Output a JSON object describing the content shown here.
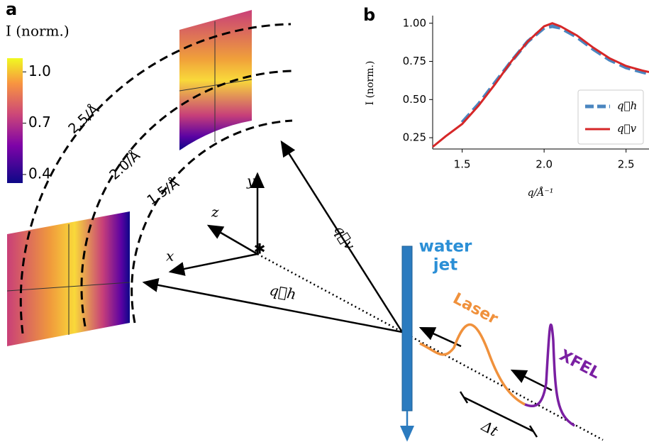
{
  "panel_a": {
    "label": "a",
    "colorbar": {
      "title": "I (norm.)",
      "ticks": [
        {
          "value": 1,
          "label": "1.0"
        },
        {
          "value": 0.7,
          "label": "0.7"
        },
        {
          "value": 0.4,
          "label": "0.4"
        }
      ],
      "lim": [
        0.35,
        1.08
      ]
    },
    "rings": [
      "2.5/Å",
      "2.0/Å",
      "1.5/Å"
    ],
    "axes": {
      "x": "x",
      "y": "y",
      "z": "z"
    },
    "vectors": {
      "qh": "q⃗h",
      "qv": "q⃗v"
    },
    "jet": [
      "water",
      "jet"
    ],
    "laser": "Laser",
    "xfel": "XFEL",
    "delay": "Δt"
  },
  "chart_data": {
    "type": "line",
    "label": "b",
    "xlabel": "q/Å⁻¹",
    "ylabel": "I (norm.)",
    "x": [
      1.32,
      1.4,
      1.5,
      1.6,
      1.7,
      1.8,
      1.9,
      2.0,
      2.05,
      2.1,
      2.2,
      2.3,
      2.4,
      2.5,
      2.6,
      2.64
    ],
    "series": [
      {
        "name": "q⃗h",
        "color": "#4a86c0",
        "dashed": true,
        "values": [
          null,
          null,
          0.35,
          0.47,
          0.61,
          0.75,
          0.88,
          0.97,
          0.98,
          0.97,
          0.91,
          0.83,
          0.76,
          0.71,
          0.68,
          0.67
        ]
      },
      {
        "name": "q⃗v",
        "color": "#d62728",
        "dashed": false,
        "values": [
          0.19,
          0.26,
          0.34,
          0.46,
          0.6,
          0.75,
          0.88,
          0.98,
          1.0,
          0.98,
          0.92,
          0.84,
          0.77,
          0.72,
          0.69,
          0.68
        ]
      }
    ],
    "xlim": [
      1.32,
      2.64
    ],
    "ylim": [
      0.176,
      1.05
    ],
    "xticks": [
      1.5,
      {
        "value": 2,
        "label": "2.0"
      },
      2.5
    ],
    "yticks": [
      {
        "value": 0.25,
        "label": "0.25"
      },
      {
        "value": 0.5,
        "label": "0.50"
      },
      {
        "value": 0.75,
        "label": "0.75"
      },
      {
        "value": 1,
        "label": "1.00"
      }
    ],
    "legend": "lower right"
  }
}
